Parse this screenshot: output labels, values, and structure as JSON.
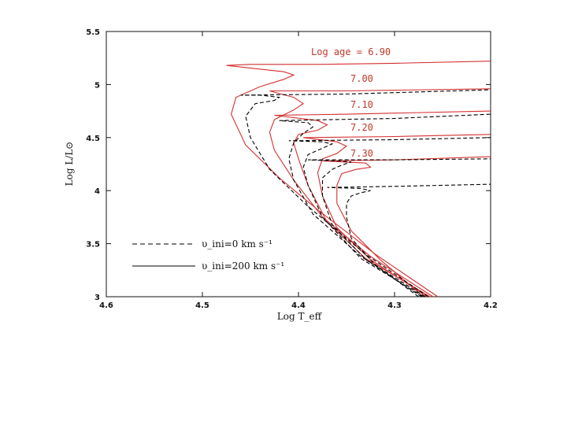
{
  "chart_data": {
    "type": "line",
    "xlabel": "Log T_eff",
    "ylabel": "Log L/L⊙",
    "xlim": [
      4.6,
      4.2
    ],
    "ylim": [
      3.0,
      5.5
    ],
    "x_ticks": [
      "4.6",
      "4.5",
      "4.4",
      "4.3",
      "4.2"
    ],
    "y_ticks": [
      "3",
      "3.5",
      "4",
      "4.5",
      "5",
      "5.5"
    ],
    "grid": false,
    "legend": {
      "placement": "bottom-left",
      "entries": [
        {
          "name": "υ_ini=0 km s⁻¹",
          "style": "dashed",
          "color": "#000000"
        },
        {
          "name": "υ_ini=200 km s⁻¹",
          "style": "solid",
          "color": "#000000"
        }
      ]
    },
    "age_labels": [
      "Log age = 6.90",
      "7.00",
      "7.10",
      "7.20",
      "7.30"
    ],
    "series": [
      {
        "age": "6.90",
        "style": "solid",
        "color": "#d32f2f",
        "points": [
          [
            4.255,
            3.0
          ],
          [
            4.32,
            3.4
          ],
          [
            4.38,
            3.82
          ],
          [
            4.42,
            4.12
          ],
          [
            4.455,
            4.43
          ],
          [
            4.47,
            4.72
          ],
          [
            4.465,
            4.88
          ],
          [
            4.44,
            4.98
          ],
          [
            4.415,
            5.05
          ],
          [
            4.405,
            5.09
          ],
          [
            4.415,
            5.12
          ],
          [
            4.445,
            5.15
          ],
          [
            4.475,
            5.18
          ],
          [
            4.45,
            5.19
          ],
          [
            4.38,
            5.19
          ],
          [
            4.3,
            5.2
          ],
          [
            4.2,
            5.22
          ]
        ]
      },
      {
        "age": "7.00",
        "style": "solid",
        "color": "#d32f2f",
        "points": [
          [
            4.26,
            3.0
          ],
          [
            4.325,
            3.38
          ],
          [
            4.375,
            3.75
          ],
          [
            4.405,
            4.1
          ],
          [
            4.425,
            4.38
          ],
          [
            4.43,
            4.55
          ],
          [
            4.425,
            4.67
          ],
          [
            4.405,
            4.76
          ],
          [
            4.395,
            4.82
          ],
          [
            4.405,
            4.88
          ],
          [
            4.43,
            4.94
          ],
          [
            4.35,
            4.94
          ],
          [
            4.2,
            4.96
          ]
        ]
      },
      {
        "age": "7.10",
        "style": "solid",
        "color": "#d32f2f",
        "points": [
          [
            4.263,
            3.0
          ],
          [
            4.33,
            3.36
          ],
          [
            4.37,
            3.7
          ],
          [
            4.39,
            4.05
          ],
          [
            4.4,
            4.3
          ],
          [
            4.405,
            4.45
          ],
          [
            4.4,
            4.53
          ],
          [
            4.38,
            4.57
          ],
          [
            4.37,
            4.62
          ],
          [
            4.38,
            4.66
          ],
          [
            4.425,
            4.71
          ],
          [
            4.35,
            4.72
          ],
          [
            4.2,
            4.75
          ]
        ]
      },
      {
        "age": "7.20",
        "style": "solid",
        "color": "#d32f2f",
        "points": [
          [
            4.266,
            3.0
          ],
          [
            4.325,
            3.35
          ],
          [
            4.36,
            3.65
          ],
          [
            4.375,
            3.95
          ],
          [
            4.38,
            4.17
          ],
          [
            4.375,
            4.3
          ],
          [
            4.36,
            4.35
          ],
          [
            4.35,
            4.42
          ],
          [
            4.36,
            4.46
          ],
          [
            4.395,
            4.5
          ],
          [
            4.3,
            4.51
          ],
          [
            4.2,
            4.53
          ]
        ]
      },
      {
        "age": "7.30",
        "style": "solid",
        "color": "#d32f2f",
        "points": [
          [
            4.27,
            3.0
          ],
          [
            4.315,
            3.35
          ],
          [
            4.345,
            3.62
          ],
          [
            4.36,
            3.88
          ],
          [
            4.36,
            4.05
          ],
          [
            4.355,
            4.16
          ],
          [
            4.34,
            4.2
          ],
          [
            4.325,
            4.22
          ],
          [
            4.33,
            4.26
          ],
          [
            4.375,
            4.28
          ],
          [
            4.3,
            4.29
          ],
          [
            4.2,
            4.32
          ]
        ]
      },
      {
        "age": "6.90",
        "style": "dashed",
        "color": "#000000",
        "points": [
          [
            4.265,
            3.0
          ],
          [
            4.33,
            3.4
          ],
          [
            4.39,
            3.85
          ],
          [
            4.43,
            4.2
          ],
          [
            4.45,
            4.5
          ],
          [
            4.455,
            4.7
          ],
          [
            4.445,
            4.82
          ],
          [
            4.425,
            4.85
          ],
          [
            4.42,
            4.88
          ],
          [
            4.44,
            4.9
          ],
          [
            4.46,
            4.9
          ],
          [
            4.35,
            4.91
          ],
          [
            4.2,
            4.95
          ]
        ]
      },
      {
        "age": "7.00",
        "style": "dashed",
        "color": "#000000",
        "points": [
          [
            4.268,
            3.0
          ],
          [
            4.335,
            3.38
          ],
          [
            4.385,
            3.78
          ],
          [
            4.405,
            4.1
          ],
          [
            4.41,
            4.3
          ],
          [
            4.405,
            4.45
          ],
          [
            4.395,
            4.54
          ],
          [
            4.385,
            4.6
          ],
          [
            4.39,
            4.64
          ],
          [
            4.42,
            4.66
          ],
          [
            4.3,
            4.68
          ],
          [
            4.2,
            4.72
          ]
        ]
      },
      {
        "age": "7.10",
        "style": "dashed",
        "color": "#000000",
        "points": [
          [
            4.27,
            3.0
          ],
          [
            4.335,
            3.36
          ],
          [
            4.375,
            3.75
          ],
          [
            4.39,
            4.05
          ],
          [
            4.395,
            4.22
          ],
          [
            4.39,
            4.34
          ],
          [
            4.375,
            4.4
          ],
          [
            4.365,
            4.44
          ],
          [
            4.375,
            4.46
          ],
          [
            4.41,
            4.47
          ],
          [
            4.3,
            4.48
          ],
          [
            4.2,
            4.5
          ]
        ]
      },
      {
        "age": "7.20",
        "style": "dashed",
        "color": "#000000",
        "points": [
          [
            4.272,
            3.0
          ],
          [
            4.33,
            3.35
          ],
          [
            4.365,
            3.68
          ],
          [
            4.375,
            3.95
          ],
          [
            4.375,
            4.12
          ],
          [
            4.365,
            4.2
          ],
          [
            4.355,
            4.24
          ],
          [
            4.345,
            4.27
          ],
          [
            4.36,
            4.28
          ],
          [
            4.39,
            4.29
          ],
          [
            4.3,
            4.29
          ],
          [
            4.2,
            4.3
          ]
        ]
      },
      {
        "age": "7.30",
        "style": "dashed",
        "color": "#000000",
        "points": [
          [
            4.275,
            3.0
          ],
          [
            4.32,
            3.3
          ],
          [
            4.345,
            3.55
          ],
          [
            4.35,
            3.75
          ],
          [
            4.35,
            3.88
          ],
          [
            4.345,
            3.95
          ],
          [
            4.335,
            3.98
          ],
          [
            4.325,
            4.0
          ],
          [
            4.335,
            4.02
          ],
          [
            4.37,
            4.03
          ],
          [
            4.3,
            4.04
          ],
          [
            4.2,
            4.06
          ]
        ]
      }
    ]
  }
}
